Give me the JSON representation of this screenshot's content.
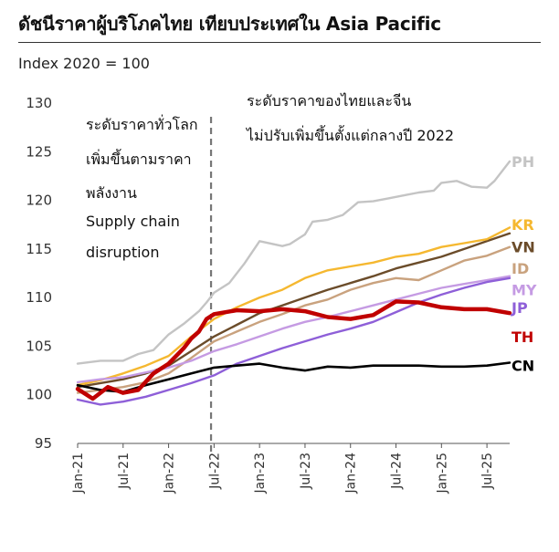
{
  "header": {
    "title": "ดัชนีราคาผู้บริโภคไทย เทียบประเทศใน Asia Pacific",
    "subtitle": "Index 2020 = 100"
  },
  "annotations": {
    "left_lines": [
      "ระดับราคาทั่วโลก",
      "เพิ่มขึ้นตามราคา",
      "พลังงาน",
      "Supply chain",
      "disruption"
    ],
    "right_lines": [
      "ระดับราคาของไทยและจีน",
      "ไม่ปรับเพิ่มขึ้นตั้งแต่กลางปี 2022"
    ]
  },
  "colors": {
    "PH": "#c4c4c4",
    "KR": "#f5b830",
    "VN": "#6b4c2a",
    "ID": "#c9a27e",
    "MY": "#c59be3",
    "JP": "#8e5fd8",
    "TH": "#c00000",
    "CN": "#000000",
    "divider": "#777777"
  },
  "chart_data": {
    "type": "line",
    "title": "ดัชนีราคาผู้บริโภคไทย เทียบประเทศใน Asia Pacific",
    "ylabel": "Index 2020 = 100",
    "xlabel": "",
    "ylim": [
      95,
      130
    ],
    "yticks": [
      95,
      100,
      105,
      110,
      115,
      120,
      125,
      130
    ],
    "xlim": [
      0,
      57
    ],
    "x_tick_labels": [
      "Jan-21",
      "Jul-21",
      "Jan-22",
      "Jul-22",
      "Jan-23",
      "Jul-23",
      "Jan-24",
      "Jul-24",
      "Jan-25",
      "Jul-25"
    ],
    "x_tick_positions": [
      0,
      6,
      12,
      18,
      24,
      30,
      36,
      42,
      48,
      54
    ],
    "divider_x": 17.6,
    "series": [
      {
        "name": "PH",
        "x": [
          0,
          3,
          6,
          8,
          10,
          12,
          14,
          16,
          17,
          18,
          20,
          22,
          24,
          27,
          28,
          30,
          31,
          33,
          35,
          37,
          39,
          41,
          43,
          45,
          47,
          48,
          50,
          52,
          54,
          55,
          57
        ],
        "values": [
          103.2,
          103.5,
          103.5,
          104.2,
          104.6,
          106.2,
          107.3,
          108.6,
          109.5,
          110.5,
          111.5,
          113.5,
          115.8,
          115.3,
          115.5,
          116.5,
          117.8,
          118.0,
          118.5,
          119.8,
          119.9,
          120.2,
          120.5,
          120.8,
          121.0,
          121.8,
          122.0,
          121.4,
          121.3,
          122.0,
          124.0
        ]
      },
      {
        "name": "KR",
        "x": [
          0,
          3,
          6,
          9,
          12,
          15,
          18,
          21,
          24,
          27,
          30,
          33,
          36,
          39,
          42,
          45,
          48,
          51,
          54,
          57
        ],
        "values": [
          101.0,
          101.5,
          102.2,
          103.0,
          104.0,
          106.0,
          107.8,
          109.0,
          110.0,
          110.8,
          112.0,
          112.8,
          113.2,
          113.6,
          114.2,
          114.5,
          115.2,
          115.6,
          116.0,
          117.2
        ]
      },
      {
        "name": "VN",
        "x": [
          0,
          3,
          6,
          9,
          12,
          15,
          18,
          21,
          24,
          27,
          30,
          33,
          36,
          39,
          42,
          45,
          48,
          51,
          54,
          57
        ],
        "values": [
          100.8,
          101.2,
          101.6,
          102.2,
          103.0,
          104.5,
          106.0,
          107.2,
          108.4,
          109.2,
          110.0,
          110.8,
          111.5,
          112.2,
          113.0,
          113.6,
          114.2,
          115.0,
          115.8,
          116.6
        ]
      },
      {
        "name": "ID",
        "x": [
          0,
          3,
          6,
          9,
          12,
          15,
          18,
          21,
          24,
          27,
          30,
          33,
          36,
          39,
          42,
          45,
          48,
          51,
          54,
          57
        ],
        "values": [
          100.2,
          100.5,
          100.8,
          101.3,
          102.2,
          103.8,
          105.5,
          106.5,
          107.5,
          108.3,
          109.2,
          109.8,
          110.8,
          111.5,
          112.0,
          111.8,
          112.8,
          113.8,
          114.3,
          115.2
        ]
      },
      {
        "name": "MY",
        "x": [
          0,
          3,
          6,
          9,
          12,
          15,
          18,
          21,
          24,
          27,
          30,
          33,
          36,
          39,
          42,
          45,
          48,
          51,
          54,
          57
        ],
        "values": [
          101.3,
          101.6,
          101.8,
          102.3,
          102.8,
          103.5,
          104.5,
          105.2,
          106.0,
          106.8,
          107.5,
          108.0,
          108.6,
          109.2,
          109.8,
          110.4,
          111.0,
          111.4,
          111.8,
          112.2
        ]
      },
      {
        "name": "JP",
        "x": [
          0,
          3,
          6,
          9,
          12,
          15,
          18,
          21,
          24,
          27,
          30,
          33,
          36,
          39,
          42,
          45,
          48,
          51,
          54,
          57
        ],
        "values": [
          99.5,
          99.0,
          99.3,
          99.8,
          100.5,
          101.2,
          102.0,
          103.2,
          104.0,
          104.8,
          105.5,
          106.2,
          106.8,
          107.5,
          108.5,
          109.5,
          110.3,
          111.0,
          111.6,
          112.0
        ]
      },
      {
        "name": "TH",
        "x": [
          0,
          2,
          4,
          6,
          8,
          10,
          12,
          14,
          15,
          16,
          17,
          18,
          21,
          24,
          27,
          30,
          33,
          36,
          39,
          42,
          45,
          48,
          51,
          54,
          57
        ],
        "values": [
          100.6,
          99.6,
          100.8,
          100.2,
          100.5,
          102.2,
          103.2,
          104.8,
          105.8,
          106.5,
          107.8,
          108.3,
          108.7,
          108.6,
          108.8,
          108.6,
          108.0,
          107.8,
          108.2,
          109.6,
          109.5,
          109.0,
          108.8,
          108.8,
          108.4
        ]
      },
      {
        "name": "CN",
        "x": [
          0,
          3,
          6,
          9,
          12,
          15,
          18,
          21,
          24,
          27,
          30,
          33,
          36,
          39,
          42,
          45,
          48,
          51,
          54,
          57
        ],
        "values": [
          101.0,
          100.5,
          100.3,
          101.0,
          101.6,
          102.2,
          102.8,
          103.0,
          103.2,
          102.8,
          102.5,
          102.9,
          102.8,
          103.0,
          103.0,
          103.0,
          102.9,
          102.9,
          103.0,
          103.3
        ]
      }
    ],
    "labels": [
      {
        "name": "PH",
        "value": 124.0
      },
      {
        "name": "KR",
        "value": 117.5
      },
      {
        "name": "VN",
        "value": 115.2
      },
      {
        "name": "ID",
        "value": 113.0
      },
      {
        "name": "MY",
        "value": 110.8
      },
      {
        "name": "JP",
        "value": 109.0
      },
      {
        "name": "TH",
        "value": 106.0
      },
      {
        "name": "CN",
        "value": 103.0
      }
    ]
  }
}
